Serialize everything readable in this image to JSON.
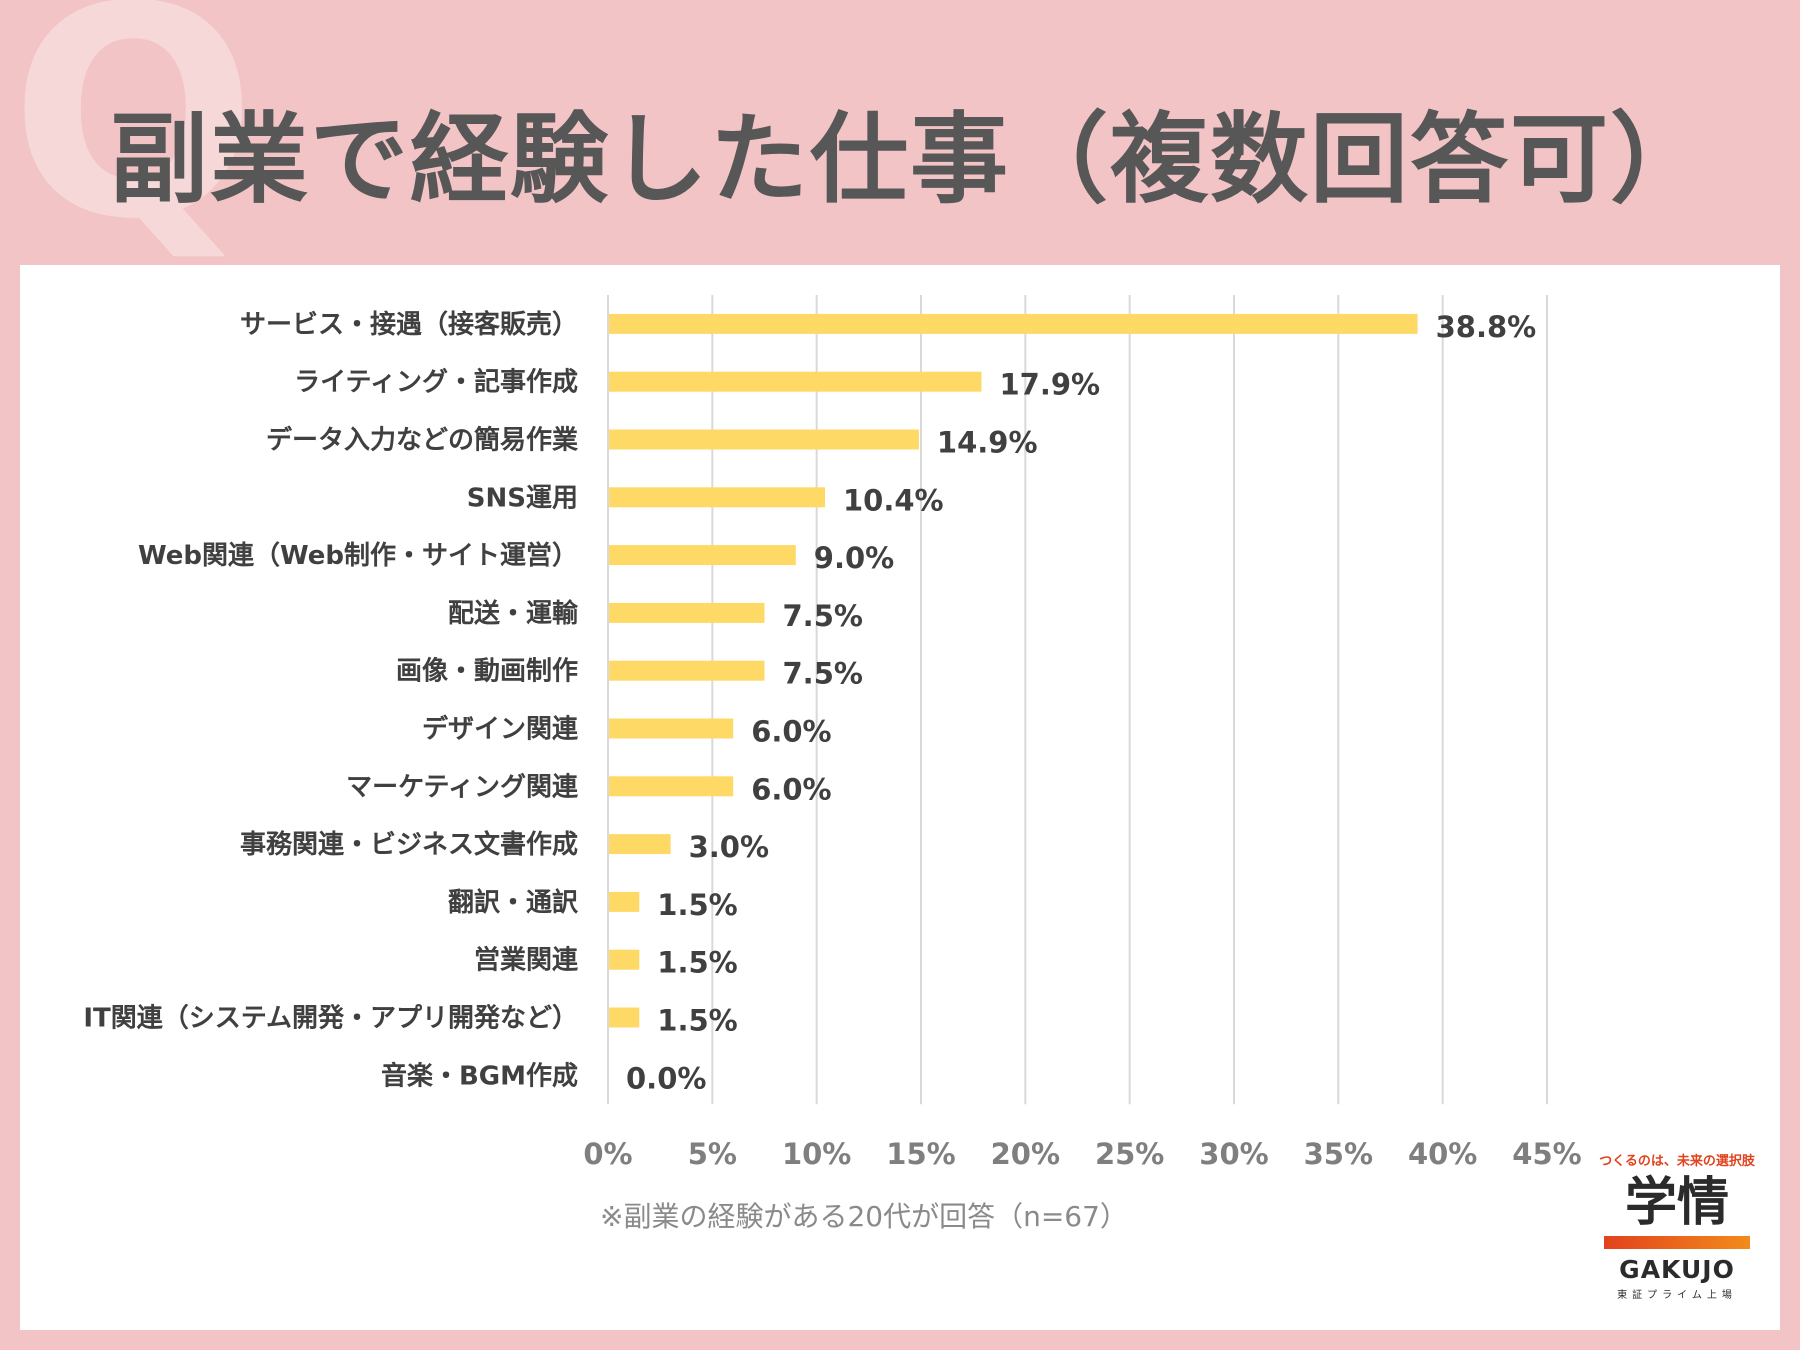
{
  "header": {
    "q_letter": "Q",
    "title": "副業で経験した仕事（複数回答可）"
  },
  "chart_data": {
    "type": "bar",
    "orientation": "horizontal",
    "categories": [
      "サービス・接遇（接客販売）",
      "ライティング・記事作成",
      "データ入力などの簡易作業",
      "SNS運用",
      "Web関連（Web制作・サイト運営）",
      "配送・運輸",
      "画像・動画制作",
      "デザイン関連",
      "マーケティング関連",
      "事務関連・ビジネス文書作成",
      "翻訳・通訳",
      "営業関連",
      "IT関連（システム開発・アプリ開発など）",
      "音楽・BGM作成"
    ],
    "values": [
      38.8,
      17.9,
      14.9,
      10.4,
      9.0,
      7.5,
      7.5,
      6.0,
      6.0,
      3.0,
      1.5,
      1.5,
      1.5,
      0.0
    ],
    "data_labels": [
      "38.8%",
      "17.9%",
      "14.9%",
      "10.4%",
      "9.0%",
      "7.5%",
      "7.5%",
      "6.0%",
      "6.0%",
      "3.0%",
      "1.5%",
      "1.5%",
      "1.5%",
      "0.0%"
    ],
    "x_ticks": [
      "0%",
      "5%",
      "10%",
      "15%",
      "20%",
      "25%",
      "30%",
      "35%",
      "40%",
      "45%"
    ],
    "xlim": [
      0,
      45
    ],
    "grid": "vertical",
    "bar_color": "#ffd966"
  },
  "footnote": "※副業の経験がある20代が回答（n=67）",
  "logo": {
    "tagline": "つくるのは、未来の選択肢",
    "kanji": "学情",
    "brand": "GAKUJO",
    "sub": "東証プライム上場"
  }
}
